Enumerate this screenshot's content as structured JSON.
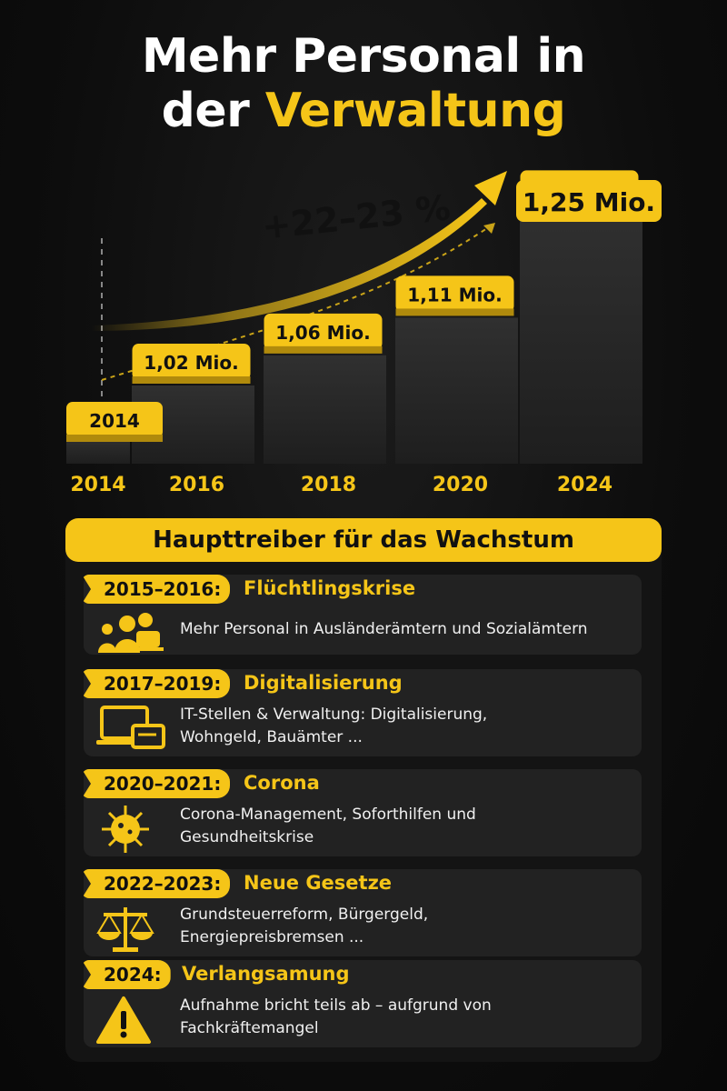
{
  "title": {
    "line1": "Mehr Personal in",
    "line2_plain": "der ",
    "line2_accent": "Verwaltung"
  },
  "growth_label": "+22–23 %",
  "colors": {
    "accent": "#f5c518",
    "bar": "#2a2a2a",
    "background": "#0d0d0d"
  },
  "chart_data": {
    "type": "bar",
    "categories": [
      "2014",
      "2016",
      "2018",
      "2020",
      "2024"
    ],
    "values": [
      null,
      1.02,
      1.06,
      1.11,
      1.25
    ],
    "data_labels": [
      "2014",
      "1,02 Mio.",
      "1,06 Mio.",
      "1,11 Mio.",
      "1,25 Mio."
    ],
    "extra_label": "1,25 Mio.",
    "annotation": "+22–23 %",
    "ylim": [
      0.95,
      1.3
    ],
    "grid": false,
    "legend": "none"
  },
  "drivers": {
    "header": "Haupttreiber für das Wachstum",
    "items": [
      {
        "years": "2015–2016:",
        "topic": "Flüchtlingskrise",
        "icon": "people-icon",
        "desc": [
          "Mehr Personal in Ausländerämtern und Sozialämtern"
        ]
      },
      {
        "years": "2017–2019:",
        "topic": "Digitalisierung",
        "icon": "computer-icon",
        "desc": [
          "IT-Stellen & Verwaltung: Digitalisierung,",
          "Wohngeld, Bauämter ..."
        ]
      },
      {
        "years": "2020–2021:",
        "topic": "Corona",
        "icon": "virus-icon",
        "desc": [
          "Corona-Management, Soforthilfen und",
          "Gesundheitskrise"
        ]
      },
      {
        "years": "2022–2023:",
        "topic": "Neue Gesetze",
        "icon": "scales-icon",
        "desc": [
          "Grundsteuerreform, Bürgergeld,",
          "Energiepreisbremsen ..."
        ]
      },
      {
        "years": "2024:",
        "topic": "Verlangsamung",
        "icon": "warning-icon",
        "desc": [
          "Aufnahme bricht teils ab – aufgrund von",
          "Fachkräftemangel"
        ]
      }
    ]
  }
}
